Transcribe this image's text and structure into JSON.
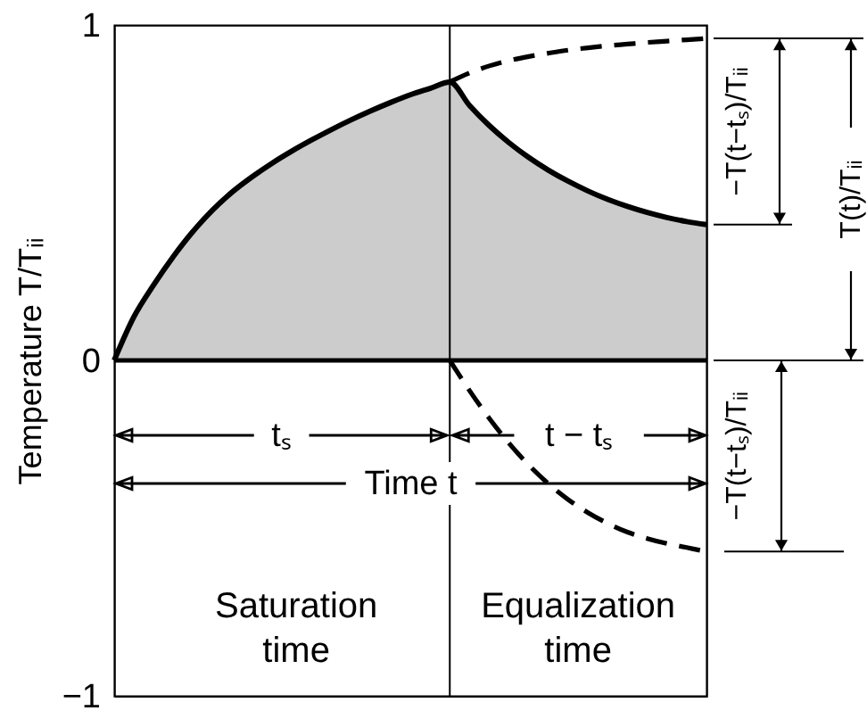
{
  "chart_data": {
    "type": "line",
    "ylabel": "Temperature T/Tᵢᵢ",
    "categories": [
      null,
      null,
      null,
      null,
      null,
      null,
      null,
      null,
      null,
      null,
      null,
      null,
      null,
      null,
      null,
      null,
      null,
      null,
      null,
      null,
      null,
      null,
      null,
      null,
      null,
      null,
      null,
      null,
      null,
      null,
      null
    ],
    "ylim": [
      -1,
      1
    ],
    "yticks": [
      -1,
      0,
      1
    ],
    "tick_labels": "y",
    "series": [
      {
        "type": "area",
        "color": "#000000",
        "line_style": "solid",
        "values": [
          0,
          0.13,
          0.225,
          0.31,
          0.385,
          0.449,
          0.503,
          0.548,
          0.588,
          0.624,
          0.657,
          0.688,
          0.717,
          0.744,
          0.769,
          0.792,
          0.811,
          0.83,
          0.76,
          0.7,
          0.649,
          0.605,
          0.567,
          0.534,
          0.505,
          0.48,
          0.459,
          0.441,
          0.426,
          0.414,
          0.405
        ]
      },
      {
        "color": "#000000",
        "line_style": "dashed",
        "values": [
          null,
          null,
          null,
          null,
          null,
          null,
          null,
          null,
          null,
          null,
          null,
          null,
          null,
          null,
          null,
          null,
          null,
          0.83,
          0.857,
          0.878,
          0.894,
          0.906,
          0.916,
          0.925,
          0.932,
          0.938,
          0.943,
          0.948,
          0.952,
          0.956,
          0.96
        ]
      },
      {
        "color": "#000000",
        "line_style": "dashed",
        "values": [
          null,
          null,
          null,
          null,
          null,
          null,
          null,
          null,
          null,
          null,
          null,
          null,
          null,
          null,
          null,
          null,
          null,
          0,
          -0.09,
          -0.173,
          -0.247,
          -0.312,
          -0.368,
          -0.415,
          -0.454,
          -0.486,
          -0.512,
          -0.531,
          -0.546,
          -0.558,
          -0.57
        ]
      }
    ],
    "ref_lines": [
      {
        "axis": "y",
        "value": 0,
        "color": "#000000"
      }
    ],
    "annotations": [
      "tₛ",
      "t − tₛ",
      "Time t",
      "Saturation\ntime",
      "Equalization\ntime",
      "−T(t−tₛ)/Tᵢᵢ",
      "T(t)/Tᵢᵢ",
      "−T(t−tₛ)/Tᵢᵢ"
    ]
  }
}
